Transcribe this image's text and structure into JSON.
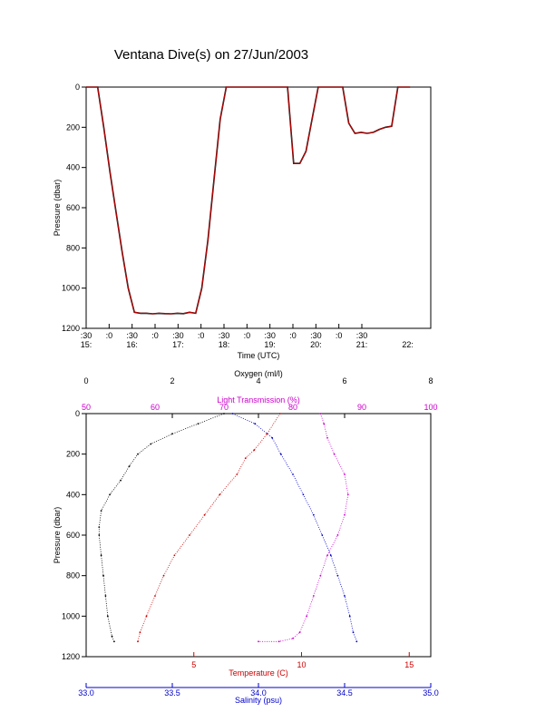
{
  "title": "Ventana Dive(s) on 27/Jun/2003",
  "chart_data": [
    {
      "type": "line",
      "ylabel": "Pressure (dbar)",
      "xlabel": "Time (UTC)",
      "y_reversed": true,
      "ylim": [
        0,
        1200
      ],
      "yticks": [
        "0",
        "200",
        "400",
        "600",
        "800",
        "1000",
        "1200"
      ],
      "xticks_row1": [
        ":30",
        ":0",
        ":30",
        ":0",
        ":30",
        ":0",
        ":30",
        ":0",
        ":30",
        ":0",
        ":30",
        ":0",
        ":30"
      ],
      "xticks_row2": [
        "15:",
        "16:",
        "17:",
        "18:",
        "19:",
        "20:",
        "21:",
        "22:"
      ],
      "series": [
        {
          "color": "#cc0000",
          "x": [
            "15:30",
            "15:37",
            "15:45",
            "15:53",
            "16:01",
            "16:09",
            "16:17",
            "16:25",
            "16:33",
            "16:41",
            "16:49",
            "16:57",
            "17:05",
            "17:13",
            "17:21",
            "17:29",
            "17:37",
            "17:45",
            "17:53",
            "18:01",
            "18:09",
            "18:17",
            "18:25",
            "18:33",
            "18:41",
            "18:49",
            "18:57",
            "19:05",
            "19:13",
            "19:21",
            "19:29",
            "19:37",
            "19:45",
            "19:53",
            "20:01",
            "20:09",
            "20:17",
            "20:25",
            "20:33",
            "20:41",
            "20:49",
            "20:57",
            "21:05",
            "21:13",
            "21:21",
            "21:29",
            "21:37",
            "21:45",
            "21:53",
            "22:01",
            "22:09",
            "22:17",
            "22:25",
            "22:33"
          ],
          "y": [
            0,
            0,
            0,
            200,
            420,
            620,
            820,
            1000,
            1120,
            1125,
            1125,
            1128,
            1125,
            1127,
            1128,
            1125,
            1127,
            1120,
            1125,
            1000,
            760,
            460,
            160,
            0,
            0,
            0,
            0,
            0,
            0,
            0,
            0,
            0,
            0,
            0,
            380,
            380,
            320,
            160,
            0,
            0,
            0,
            0,
            0,
            180,
            230,
            225,
            230,
            225,
            210,
            200,
            195,
            0,
            0,
            0
          ]
        }
      ]
    },
    {
      "type": "scatter",
      "ylabel": "Pressure (dbar)",
      "ylim": [
        0,
        1200
      ],
      "yticks": [
        "0",
        "200",
        "400",
        "600",
        "800",
        "1000",
        "1200"
      ],
      "axes": {
        "oxygen": {
          "label": "Oxygen (ml/l)",
          "range": [
            0,
            8
          ],
          "ticks": [
            "0",
            "2",
            "4",
            "6",
            "8"
          ],
          "color": "#000000"
        },
        "light": {
          "label": "Light Transmission (%)",
          "range": [
            50,
            100
          ],
          "ticks": [
            "50",
            "60",
            "70",
            "80",
            "90",
            "100"
          ],
          "color": "#cc00cc"
        },
        "temperature": {
          "label": "Temperature (C)",
          "range": [
            0,
            16
          ],
          "ticks": [
            "5",
            "10",
            "15"
          ],
          "color": "#cc0000"
        },
        "salinity": {
          "label": "Salinity (psu)",
          "range": [
            33.0,
            35.0
          ],
          "ticks": [
            "33.0",
            "33.5",
            "34.0",
            "34.5",
            "35.0"
          ],
          "color": "#0000cc"
        }
      },
      "series": [
        {
          "name": "Oxygen (ml/l)",
          "axis": "oxygen",
          "color": "#000000",
          "points": [
            [
              3.2,
              0
            ],
            [
              2.6,
              50
            ],
            [
              2.0,
              100
            ],
            [
              1.5,
              150
            ],
            [
              1.2,
              200
            ],
            [
              1.0,
              260
            ],
            [
              0.8,
              330
            ],
            [
              0.55,
              400
            ],
            [
              0.35,
              480
            ],
            [
              0.3,
              560
            ],
            [
              0.3,
              600
            ],
            [
              0.35,
              700
            ],
            [
              0.4,
              800
            ],
            [
              0.45,
              900
            ],
            [
              0.5,
              1000
            ],
            [
              0.6,
              1100
            ],
            [
              0.65,
              1125
            ]
          ]
        },
        {
          "name": "Light Transmission (%)",
          "axis": "light",
          "color": "#cc00cc",
          "points": [
            [
              84,
              0
            ],
            [
              84.5,
              50
            ],
            [
              85,
              120
            ],
            [
              86,
              200
            ],
            [
              87.5,
              300
            ],
            [
              88,
              400
            ],
            [
              87.5,
              500
            ],
            [
              86.5,
              600
            ],
            [
              85,
              700
            ],
            [
              84,
              800
            ],
            [
              83,
              900
            ],
            [
              82,
              1000
            ],
            [
              81,
              1080
            ],
            [
              80,
              1110
            ],
            [
              78,
              1125
            ],
            [
              75,
              1125
            ]
          ]
        },
        {
          "name": "Temperature (C)",
          "axis": "temperature",
          "color": "#cc0000",
          "points": [
            [
              9.0,
              0
            ],
            [
              8.4,
              100
            ],
            [
              7.8,
              180
            ],
            [
              7.4,
              220
            ],
            [
              7.0,
              300
            ],
            [
              6.2,
              400
            ],
            [
              5.5,
              500
            ],
            [
              4.8,
              600
            ],
            [
              4.1,
              700
            ],
            [
              3.6,
              800
            ],
            [
              3.2,
              900
            ],
            [
              2.8,
              1000
            ],
            [
              2.5,
              1080
            ],
            [
              2.4,
              1125
            ]
          ]
        },
        {
          "name": "Salinity (psu)",
          "axis": "salinity",
          "color": "#0000cc",
          "points": [
            [
              33.85,
              0
            ],
            [
              33.98,
              50
            ],
            [
              34.08,
              120
            ],
            [
              34.13,
              200
            ],
            [
              34.2,
              300
            ],
            [
              34.26,
              400
            ],
            [
              34.32,
              500
            ],
            [
              34.37,
              600
            ],
            [
              34.42,
              700
            ],
            [
              34.46,
              800
            ],
            [
              34.5,
              900
            ],
            [
              34.53,
              1000
            ],
            [
              34.55,
              1080
            ],
            [
              34.57,
              1125
            ]
          ]
        }
      ]
    }
  ]
}
